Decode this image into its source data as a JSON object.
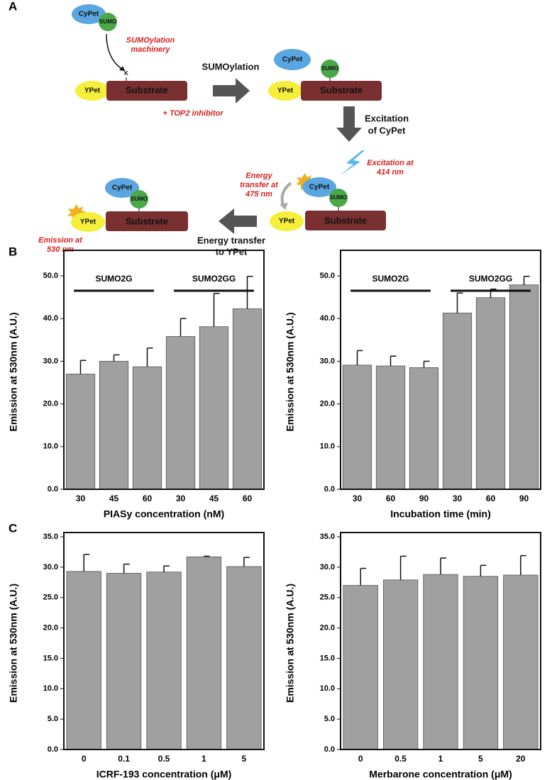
{
  "panels": [
    "A",
    "B",
    "C"
  ],
  "diagram": {
    "steps": [
      {
        "cypet": "CyPet",
        "sumo": "SUMO",
        "ypet": "YPet",
        "substrate": "Substrate"
      },
      {
        "cypet": "CyPet",
        "sumo": "SUMO",
        "ypet": "YPet",
        "substrate": "Substrate"
      },
      {
        "cypet": "CyPet",
        "sumo": "SUMO",
        "ypet": "YPet",
        "substrate": "Substrate"
      },
      {
        "cypet": "CyPet",
        "sumo": "SUMO",
        "ypet": "YPet",
        "substrate": "Substrate"
      }
    ],
    "machinery": [
      "SUMOylation",
      "machinery"
    ],
    "lysine": "K",
    "inhibitor": "+ TOP2 inhibitor",
    "sumoylation": "SUMOylation",
    "excitation_step": [
      "Excitation",
      "of CyPet"
    ],
    "excitation_note": [
      "Excitation at",
      "414 nm"
    ],
    "transfer_note": [
      "Energy",
      "transfer at",
      "475 nm"
    ],
    "transfer_step": [
      "Energy transfer",
      "to YPet"
    ],
    "emission_note": [
      "Emission at",
      "530 nm"
    ]
  },
  "chart_data": [
    {
      "type": "bar",
      "ylabel": "Emission at 530nm (A.U.)",
      "xlabel": "PIASy concentration (nM)",
      "groups": [
        "SUMO2G",
        "SUMO2GG"
      ],
      "categories": [
        "30",
        "45",
        "60",
        "30",
        "45",
        "60"
      ],
      "values": [
        27.0,
        30.0,
        28.7,
        35.8,
        38.1,
        42.3
      ],
      "errors": [
        3.2,
        1.5,
        4.4,
        4.2,
        7.8,
        7.6
      ],
      "color": "#a0a0a0",
      "ylim": [
        0,
        55
      ],
      "yticks": [
        {
          "value": 0,
          "label": "0.0"
        },
        {
          "value": 10,
          "label": "10.0"
        },
        {
          "value": 20,
          "label": "20.0"
        },
        {
          "value": 30,
          "label": "30.0"
        },
        {
          "value": 40,
          "label": "40.0"
        },
        {
          "value": 50,
          "label": "50.0"
        }
      ]
    },
    {
      "type": "bar",
      "ylabel": "Emission at 530nm (A.U.)",
      "xlabel": "Incubation time (min)",
      "groups": [
        "SUMO2G",
        "SUMO2GG"
      ],
      "categories": [
        "30",
        "60",
        "90",
        "30",
        "60",
        "90"
      ],
      "values": [
        29.1,
        28.9,
        28.5,
        41.3,
        44.9,
        47.9
      ],
      "errors": [
        3.4,
        2.3,
        1.5,
        4.7,
        2.0,
        2.0
      ],
      "color": "#a0a0a0",
      "ylim": [
        0,
        55
      ],
      "yticks": [
        {
          "value": 0,
          "label": "0.0"
        },
        {
          "value": 10,
          "label": "10.0"
        },
        {
          "value": 20,
          "label": "20.0"
        },
        {
          "value": 30,
          "label": "30.0"
        },
        {
          "value": 40,
          "label": "40.0"
        },
        {
          "value": 50,
          "label": "50.0"
        }
      ]
    },
    {
      "type": "bar",
      "ylabel": "Emission at 530nm (A.U.)",
      "xlabel": "ICRF-193 concentration (μM)",
      "categories": [
        "0",
        "0.1",
        "0.5",
        "1",
        "5"
      ],
      "values": [
        29.3,
        29.0,
        29.2,
        31.7,
        30.1
      ],
      "errors": [
        2.8,
        1.5,
        1.0,
        0.1,
        1.5
      ],
      "color": "#a0a0a0",
      "ylim": [
        0,
        35
      ],
      "yticks": [
        {
          "value": 0,
          "label": "0.0"
        },
        {
          "value": 5,
          "label": "5.0"
        },
        {
          "value": 10,
          "label": "10.0"
        },
        {
          "value": 15,
          "label": "15.0"
        },
        {
          "value": 20,
          "label": "20.0"
        },
        {
          "value": 25,
          "label": "25.0"
        },
        {
          "value": 30,
          "label": "30.0"
        },
        {
          "value": 35,
          "label": "35.0"
        }
      ]
    },
    {
      "type": "bar",
      "ylabel": "Emission at 530nm (A.U.)",
      "xlabel": "Merbarone concentration (μM)",
      "categories": [
        "0",
        "0.5",
        "1",
        "5",
        "20"
      ],
      "values": [
        27.0,
        27.9,
        28.8,
        28.5,
        28.7
      ],
      "errors": [
        2.8,
        3.9,
        2.7,
        1.8,
        3.2
      ],
      "color": "#a0a0a0",
      "ylim": [
        0,
        35
      ],
      "yticks": [
        {
          "value": 0,
          "label": "0.0"
        },
        {
          "value": 5,
          "label": "5.0"
        },
        {
          "value": 10,
          "label": "10.0"
        },
        {
          "value": 15,
          "label": "15.0"
        },
        {
          "value": 20,
          "label": "20.0"
        },
        {
          "value": 25,
          "label": "25.0"
        },
        {
          "value": 30,
          "label": "30.0"
        },
        {
          "value": 35,
          "label": "35.0"
        }
      ]
    }
  ]
}
